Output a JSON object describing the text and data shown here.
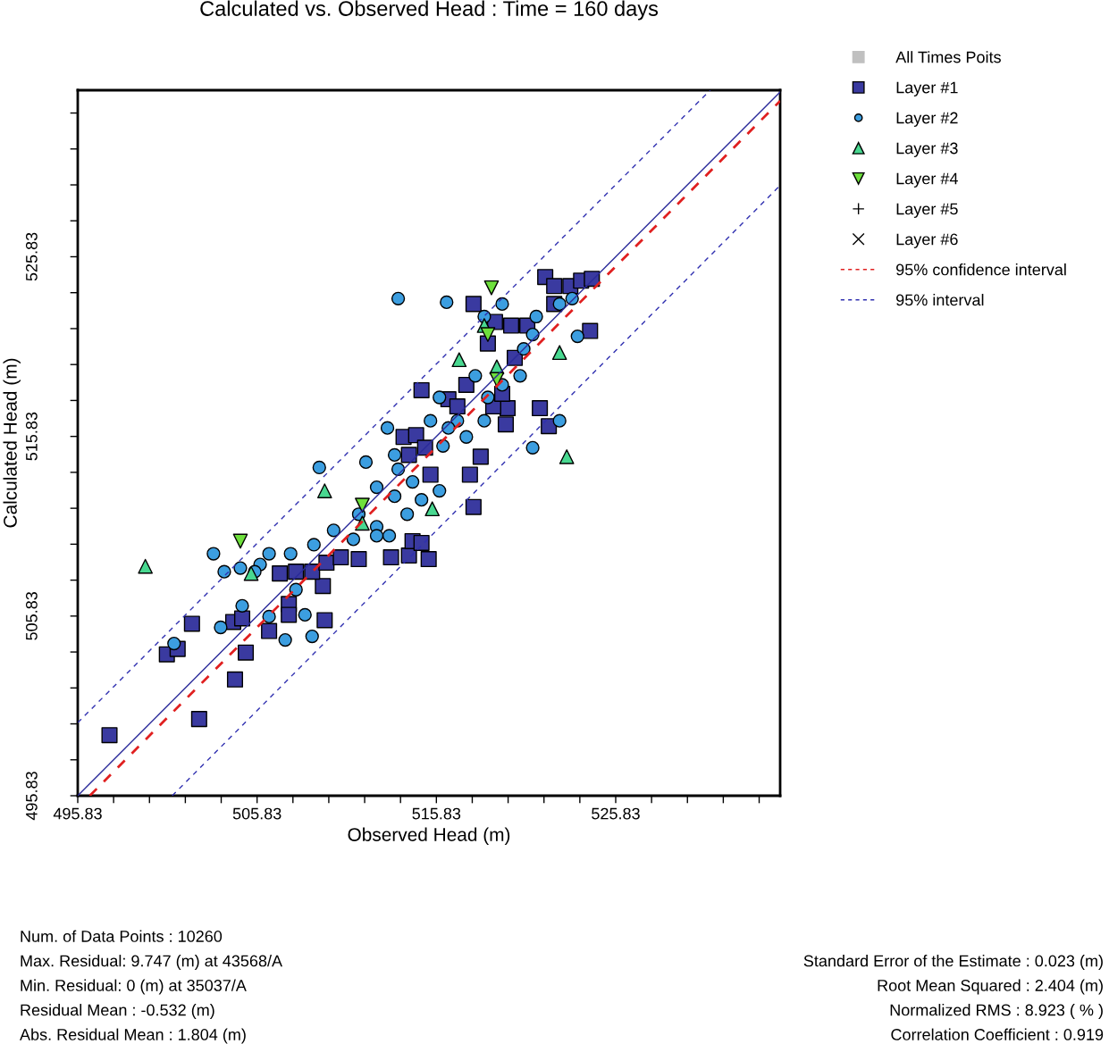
{
  "chart_data": {
    "type": "scatter",
    "title": "Calculated vs. Observed Head : Time = 160 days",
    "xlabel": "Observed Head (m)",
    "ylabel": "Calculated Head (m)",
    "xlim": [
      495.83,
      535.0
    ],
    "ylim": [
      495.83,
      535.1
    ],
    "xticks": [
      495.83,
      {
        "value": 497.83,
        "label": null
      },
      {
        "value": 499.83,
        "label": null
      },
      {
        "value": 501.83,
        "label": null
      },
      {
        "value": 503.83,
        "label": null
      },
      505.83,
      {
        "value": 507.83,
        "label": null
      },
      {
        "value": 509.83,
        "label": null
      },
      {
        "value": 511.83,
        "label": null
      },
      {
        "value": 513.83,
        "label": null
      },
      515.83,
      {
        "value": 517.83,
        "label": null
      },
      {
        "value": 519.83,
        "label": null
      },
      {
        "value": 521.83,
        "label": null
      },
      {
        "value": 523.83,
        "label": null
      },
      525.83,
      {
        "value": 527.83,
        "label": null
      },
      {
        "value": 529.83,
        "label": null
      },
      {
        "value": 531.83,
        "label": null
      },
      {
        "value": 533.83,
        "label": null
      }
    ],
    "yticks": [
      495.83,
      {
        "value": 497.83,
        "label": null
      },
      {
        "value": 499.83,
        "label": null
      },
      {
        "value": 501.83,
        "label": null
      },
      {
        "value": 503.83,
        "label": null
      },
      505.83,
      {
        "value": 507.83,
        "label": null
      },
      {
        "value": 509.83,
        "label": null
      },
      {
        "value": 511.83,
        "label": null
      },
      {
        "value": 513.83,
        "label": null
      },
      515.83,
      {
        "value": 517.83,
        "label": null
      },
      {
        "value": 519.83,
        "label": null
      },
      {
        "value": 521.83,
        "label": null
      },
      {
        "value": 523.83,
        "label": null
      },
      525.83,
      {
        "value": 527.83,
        "label": null
      },
      {
        "value": 529.83,
        "label": null
      },
      {
        "value": 531.83,
        "label": null
      },
      {
        "value": 533.83,
        "label": null
      }
    ],
    "grid": false,
    "legend": "right",
    "series": [
      {
        "name": "All Times Poits",
        "marker": "square",
        "color": "#c0c0c0"
      },
      {
        "name": "Layer #1",
        "marker": "square",
        "color": "#3a3aa0",
        "x": [
          497.6,
          502.6,
          504.6,
          500.8,
          501.4,
          502.2,
          505.2,
          504.5,
          505.0,
          506.5,
          507.6,
          507.6,
          509.6,
          509.5,
          507.1,
          508.0,
          508.9,
          509.7,
          510.5,
          511.5,
          513.3,
          514.3,
          515.4,
          514.5,
          515.0,
          517.9,
          517.7,
          518.3,
          514.0,
          514.7,
          514.3,
          515.2,
          515.5,
          519.7,
          519.8,
          521.6,
          522.1,
          515.0,
          516.5,
          517.5,
          517.0,
          519.0,
          519.5,
          520.2,
          520.0,
          518.7,
          517.9,
          519.1,
          521.9,
          522.4,
          523.3,
          523.9,
          524.5,
          522.4,
          524.4,
          520.9
        ],
        "values": [
          499.2,
          500.1,
          502.3,
          503.7,
          504.0,
          505.4,
          503.8,
          505.5,
          505.7,
          505.0,
          506.5,
          505.9,
          505.6,
          507.5,
          508.2,
          508.3,
          508.3,
          508.8,
          509.1,
          509.0,
          509.1,
          509.2,
          509.0,
          510.0,
          509.9,
          511.9,
          513.7,
          514.7,
          515.8,
          515.9,
          514.8,
          515.2,
          513.7,
          516.5,
          517.4,
          517.4,
          516.4,
          518.4,
          517.9,
          518.7,
          517.5,
          517.5,
          518.2,
          520.2,
          522.0,
          521.0,
          523.2,
          522.2,
          524.7,
          524.2,
          524.2,
          524.5,
          524.6,
          523.2,
          521.7,
          522.0
        ]
      },
      {
        "name": "Layer #2",
        "marker": "circle",
        "color": "#3c9ee0",
        "x": [
          513.7,
          516.4,
          509.3,
          511.9,
          503.4,
          504.0,
          504.9,
          503.8,
          505.0,
          507.4,
          508.9,
          506.0,
          506.5,
          507.7,
          509.0,
          510.1,
          511.2,
          512.5,
          513.2,
          512.5,
          513.5,
          514.5,
          515.0,
          514.2,
          513.7,
          516.0,
          516.2,
          515.5,
          516.0,
          517.0,
          517.5,
          518.5,
          518.7,
          519.5,
          520.5,
          520.7,
          521.2,
          521.4,
          522.7,
          523.4,
          523.7,
          522.7,
          521.2,
          513.1,
          511.5,
          506.5,
          505.7,
          508.5,
          519.5,
          518.5,
          518.0,
          516.5,
          513.5,
          512.5,
          508.0,
          501.2
        ],
        "values": [
          523.5,
          523.3,
          514.1,
          514.4,
          509.3,
          508.3,
          508.5,
          505.2,
          506.4,
          504.5,
          504.7,
          508.7,
          509.3,
          509.3,
          509.8,
          510.6,
          510.1,
          510.8,
          510.3,
          513.0,
          512.5,
          513.3,
          512.3,
          511.5,
          514.0,
          512.8,
          515.3,
          516.7,
          518.0,
          516.7,
          515.8,
          516.7,
          518.0,
          518.7,
          519.2,
          520.7,
          521.5,
          522.5,
          523.2,
          523.5,
          521.4,
          516.7,
          515.2,
          516.3,
          511.5,
          505.8,
          508.3,
          505.9,
          523.2,
          522.5,
          519.2,
          516.3,
          514.8,
          510.3,
          507.3,
          504.3
        ]
      },
      {
        "name": "Layer #3",
        "marker": "triangle",
        "color": "#48d890",
        "x": [
          499.6,
          509.6,
          505.5,
          511.7,
          515.6,
          517.1,
          518.5,
          522.7,
          523.1,
          519.2
        ],
        "values": [
          508.6,
          512.8,
          508.2,
          511.0,
          511.8,
          520.1,
          522.0,
          520.5,
          514.7,
          519.7
        ]
      },
      {
        "name": "Layer #4",
        "marker": "triangle_down",
        "color": "#6ee03c",
        "x": [
          504.9,
          511.7,
          518.9,
          518.7,
          519.2
        ],
        "values": [
          510.0,
          512.0,
          524.1,
          521.5,
          519.0
        ]
      },
      {
        "name": "Layer #5",
        "marker": "plus",
        "color": "#000000"
      },
      {
        "name": "Layer #6",
        "marker": "cross",
        "color": "#000000"
      },
      {
        "name": "95% confidence interval",
        "type": "line",
        "line_style": "dashed",
        "color": "#e02020",
        "x": [
          496.5,
          535.0
        ],
        "values": [
          495.83,
          534.5
        ]
      },
      {
        "name": "95% interval",
        "type": "line",
        "line_style": "dashed",
        "color": "#3030b0",
        "x": [
          495.83,
          531.1,
          null,
          501.1,
          535.0
        ],
        "values": [
          499.9,
          535.1,
          null,
          495.83,
          529.8
        ]
      },
      {
        "type": "line",
        "line_style": "solid",
        "color": "#2a2a9a",
        "x": [
          495.83,
          535.0
        ],
        "values": [
          495.83,
          535.0
        ]
      }
    ],
    "annotations": [
      "Num. of Data Points : 10260",
      "Max. Residual: 9.747 (m) at 43568/A",
      "Min. Residual: 0 (m) at 35037/A",
      "Residual Mean : -0.532 (m)",
      "Abs. Residual Mean : 1.804 (m)",
      "Standard Error of the Estimate : 0.023 (m)",
      "Root Mean Squared : 2.404 (m)",
      "Normalized RMS : 8.923 ( % )",
      "Correlation Coefficient : 0.919"
    ]
  }
}
